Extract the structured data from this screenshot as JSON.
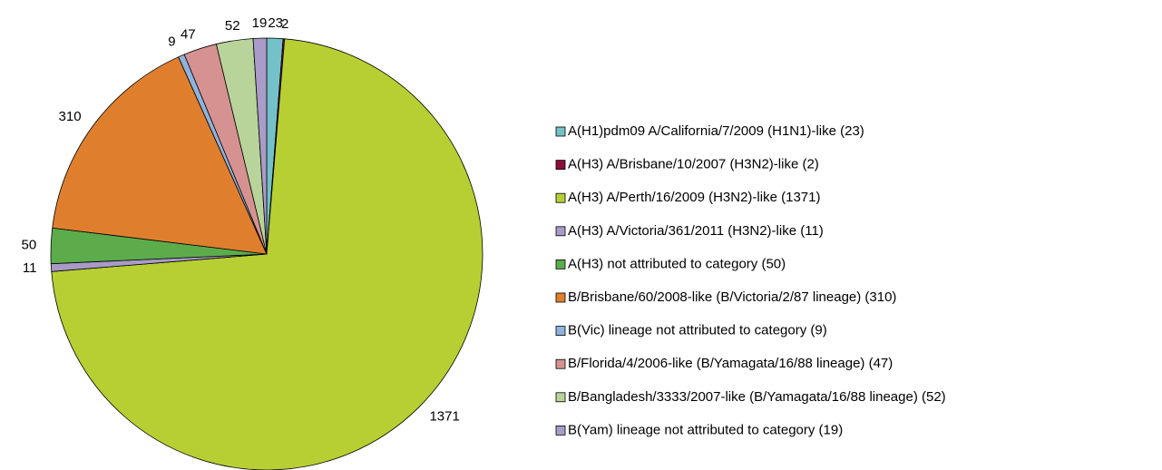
{
  "chart_data": {
    "type": "pie",
    "categories": [
      "A(H1)pdm09  A/California/7/2009 (H1N1)-like (23)",
      "A(H3) A/Brisbane/10/2007 (H3N2)-like (2)",
      "A(H3) A/Perth/16/2009 (H3N2)-like (1371)",
      "A(H3) A/Victoria/361/2011 (H3N2)-like (11)",
      "A(H3) not attributed to category (50)",
      "B/Brisbane/60/2008-like (B/Victoria/2/87 lineage) (310)",
      "B(Vic) lineage not attributed to category (9)",
      "B/Florida/4/2006-like (B/Yamagata/16/88 lineage) (47)",
      "B/Bangladesh/3333/2007-like (B/Yamagata/16/88 lineage) (52)",
      "B(Yam) lineage not attributed to category (19)"
    ],
    "values": [
      23,
      2,
      1371,
      11,
      50,
      310,
      9,
      47,
      52,
      19
    ],
    "colors": [
      "#74c1c9",
      "#8c0c3c",
      "#b8cf33",
      "#a99ac8",
      "#5cac4c",
      "#df7f2e",
      "#8fb3dc",
      "#d59291",
      "#b8d49a",
      "#a99cc8"
    ],
    "legend_position": "right"
  }
}
